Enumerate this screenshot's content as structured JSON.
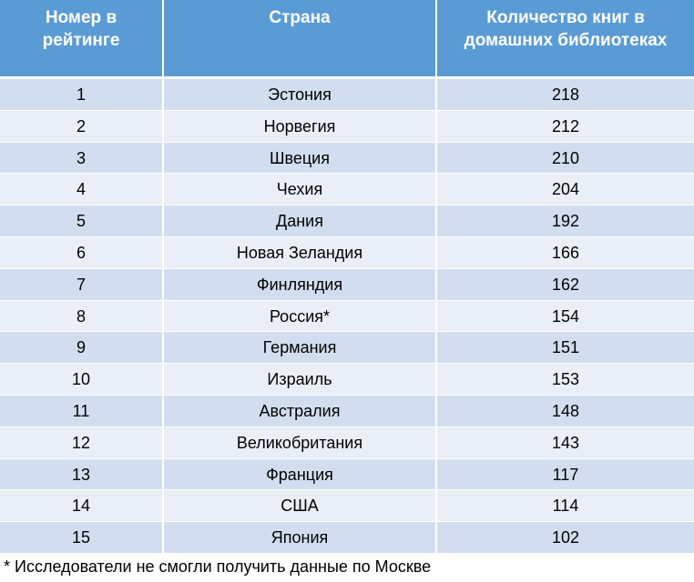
{
  "table": {
    "headers": [
      "Номер в рейтинге",
      "Страна",
      "Количество книг в домашних библиотеках"
    ],
    "header_lines": [
      [
        "Номер в",
        "рейтинге"
      ],
      [
        "Страна"
      ],
      [
        "Количество книг в",
        "домашних библиотеках"
      ]
    ],
    "rows": [
      [
        "1",
        "Эстония",
        "218"
      ],
      [
        "2",
        "Норвегия",
        "212"
      ],
      [
        "3",
        "Швеция",
        "210"
      ],
      [
        "4",
        "Чехия",
        "204"
      ],
      [
        "5",
        "Дания",
        "192"
      ],
      [
        "6",
        "Новая Зеландия",
        "166"
      ],
      [
        "7",
        "Финляндия",
        "162"
      ],
      [
        "8",
        "Россия*",
        "154"
      ],
      [
        "9",
        "Германия",
        "151"
      ],
      [
        "10",
        "Израиль",
        "153"
      ],
      [
        "11",
        "Австралия",
        "148"
      ],
      [
        "12",
        "Великобритания",
        "143"
      ],
      [
        "13",
        "Франция",
        "117"
      ],
      [
        "14",
        "США",
        "114"
      ],
      [
        "15",
        "Япония",
        "102"
      ]
    ]
  },
  "footnote": "* Исследователи не смогли получить данные по Москве",
  "colors": {
    "header_bg": "#5b9bd5",
    "row_odd_bg": "#d2deef",
    "row_even_bg": "#eaeff7"
  }
}
